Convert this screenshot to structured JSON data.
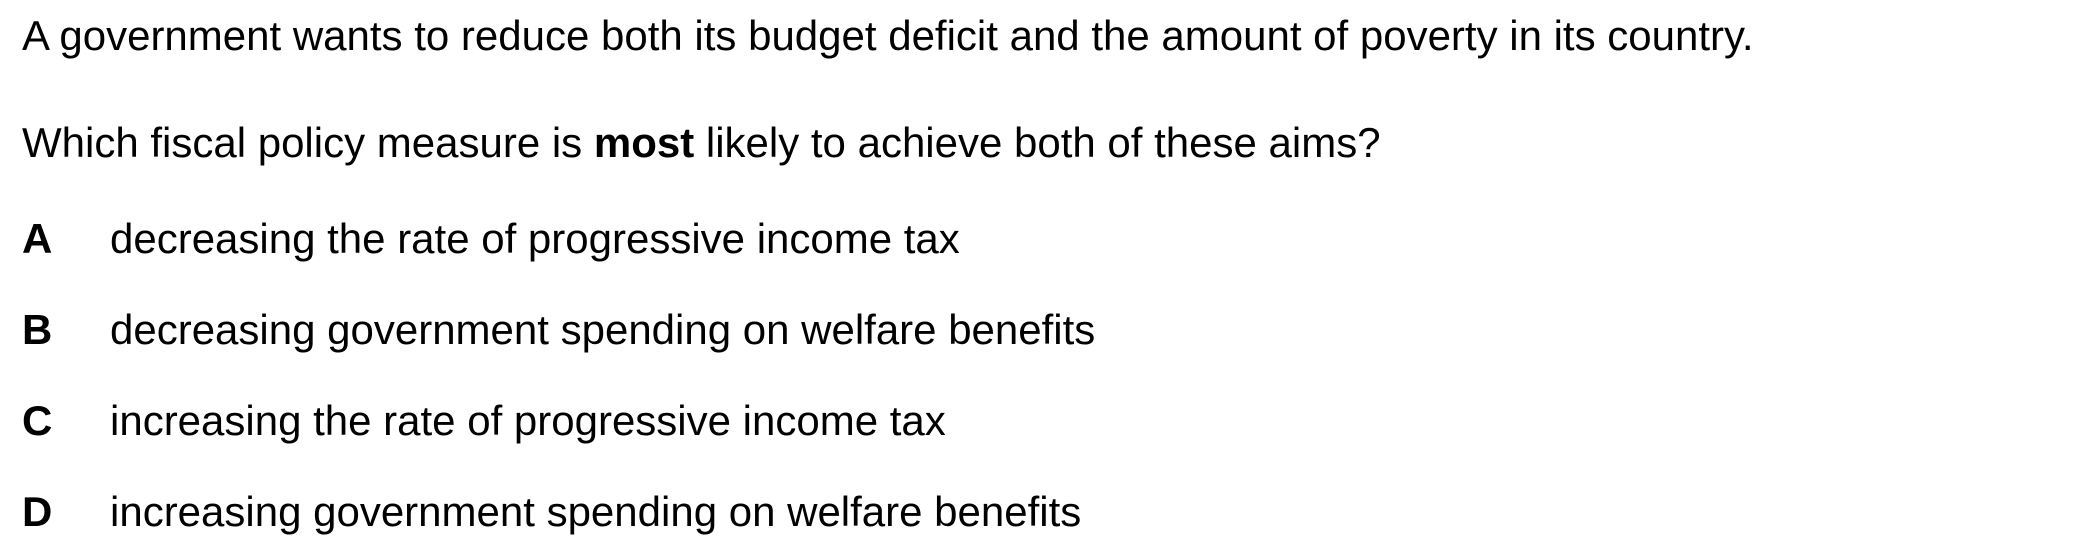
{
  "question": {
    "intro": "A government wants to reduce both its budget deficit and the amount of poverty in its country.",
    "prompt_before": "Which fiscal policy measure is ",
    "prompt_emphasis": "most",
    "prompt_after": " likely to achieve both of these aims?"
  },
  "options": [
    {
      "letter": "A",
      "text": "decreasing the rate of progressive income tax"
    },
    {
      "letter": "B",
      "text": "decreasing government spending on welfare benefits"
    },
    {
      "letter": "C",
      "text": "increasing the rate of progressive income tax"
    },
    {
      "letter": "D",
      "text": "increasing government spending on welfare benefits"
    }
  ]
}
